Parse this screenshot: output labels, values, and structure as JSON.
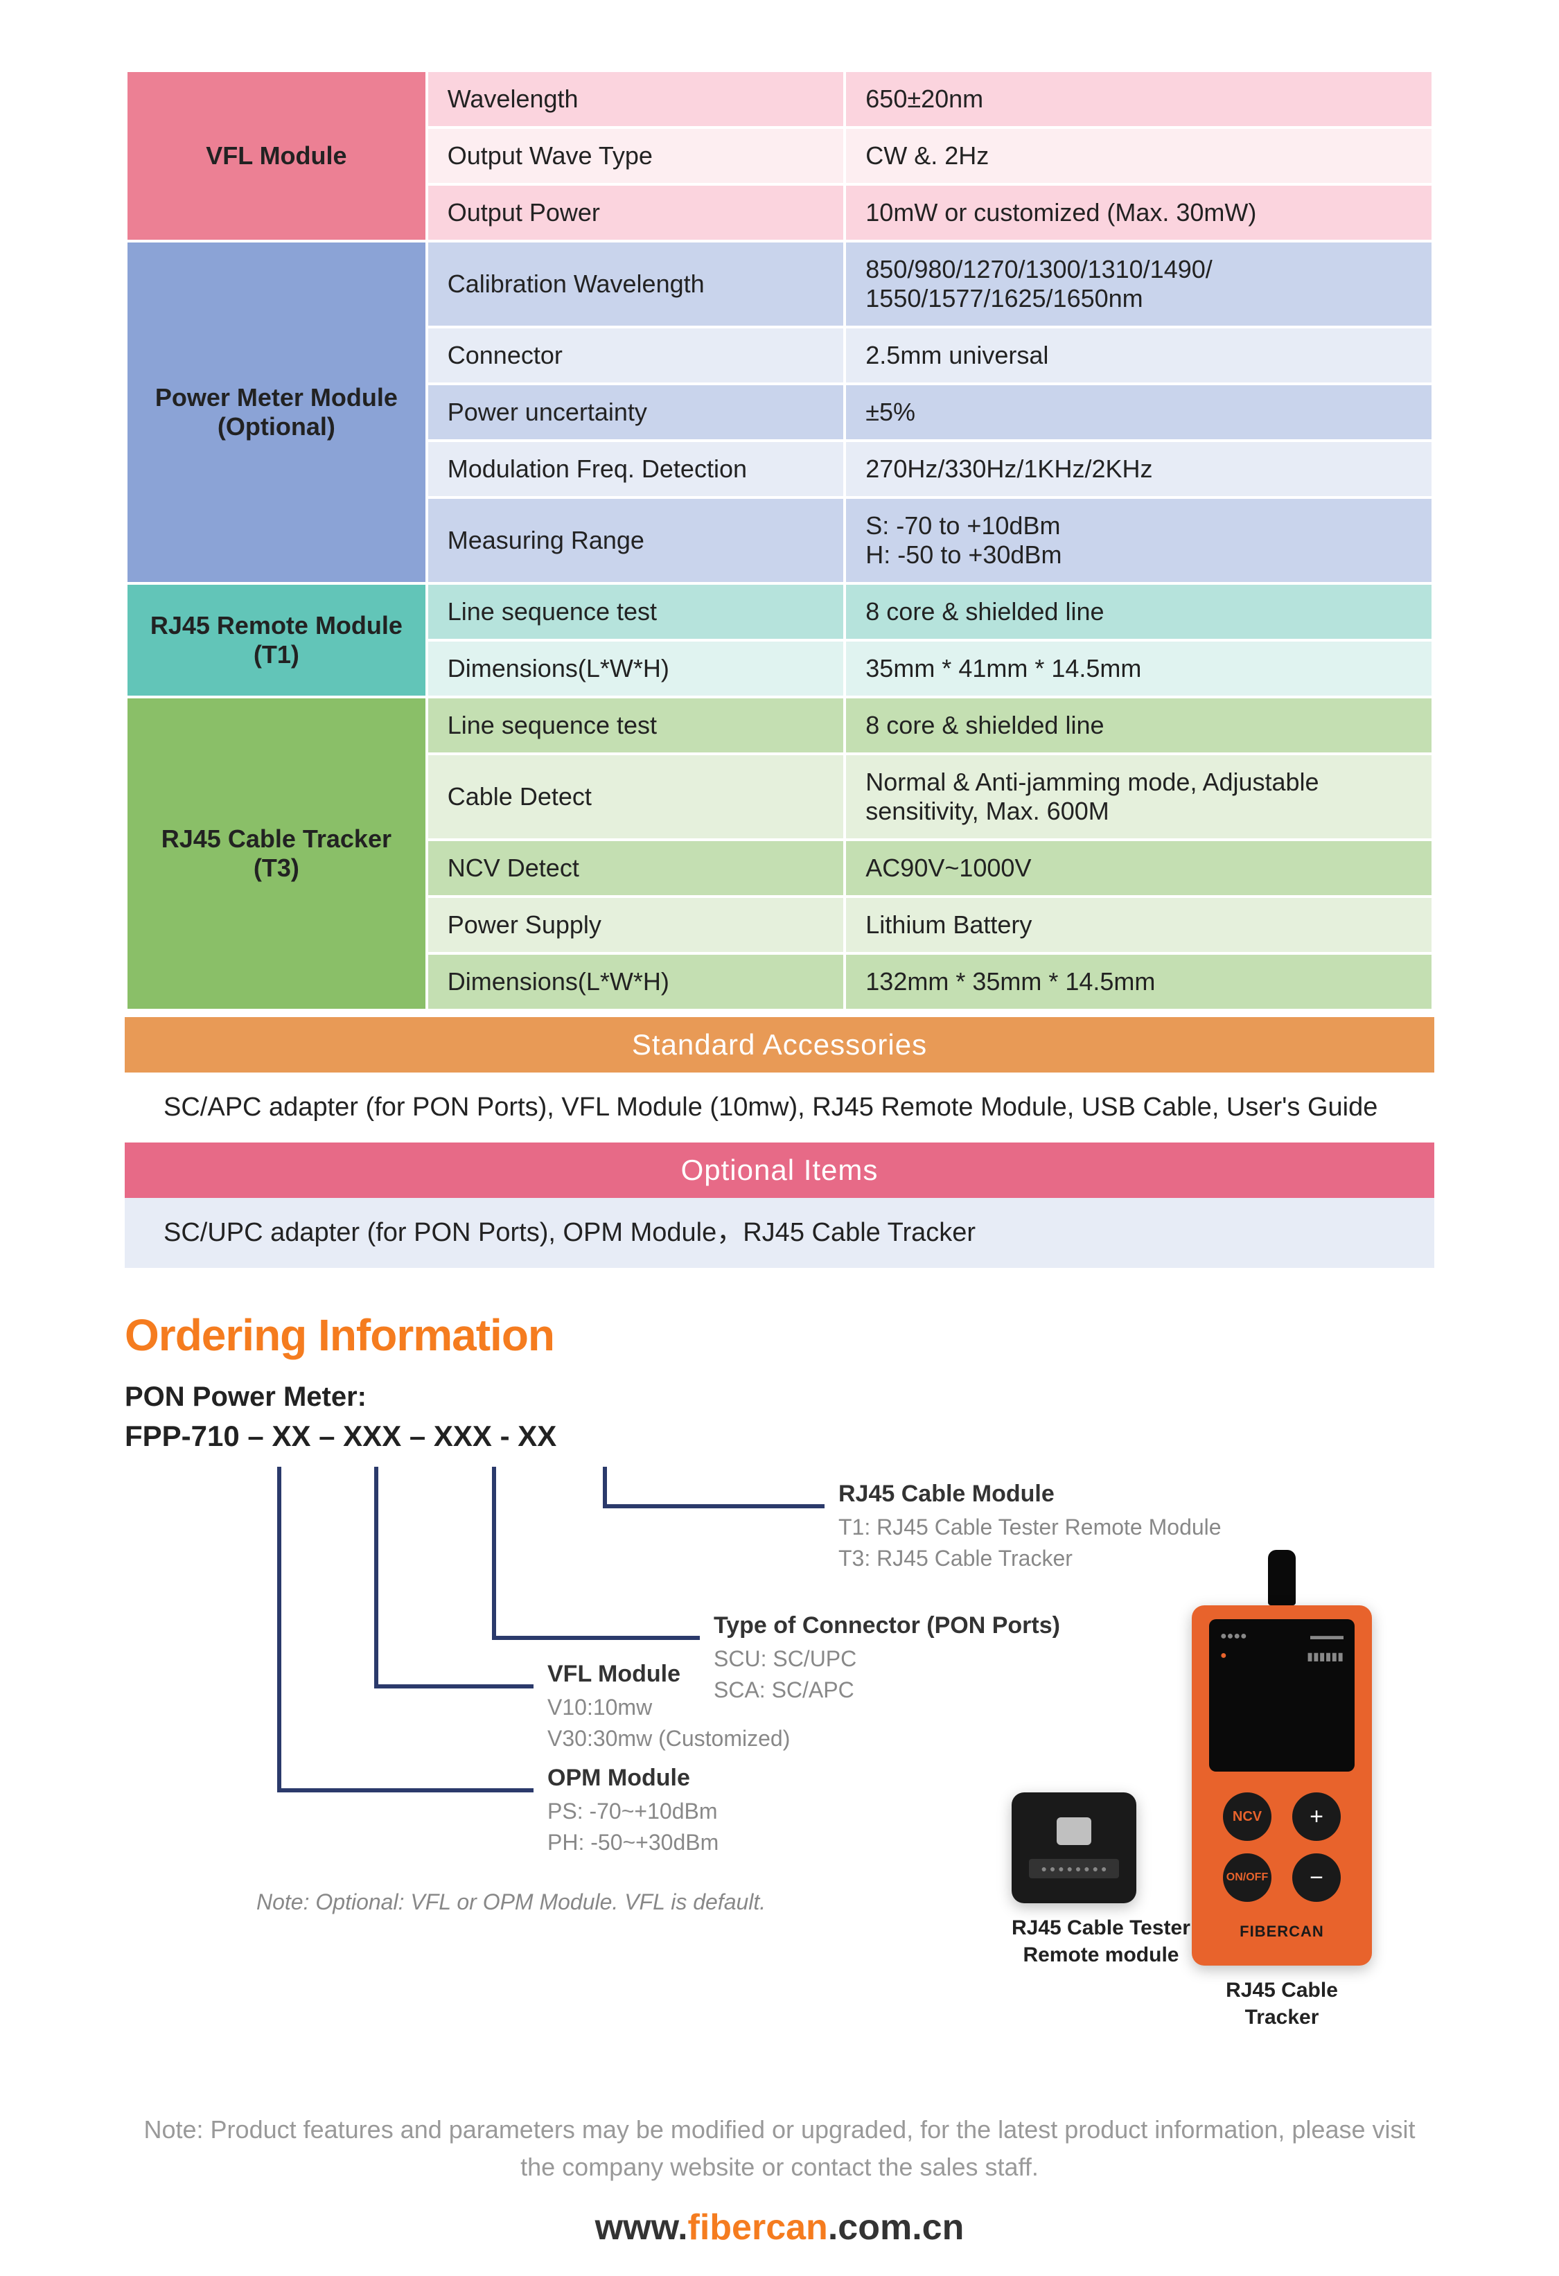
{
  "spec_sections": [
    {
      "name": "VFL Module",
      "header_bg": "#ec8094",
      "row_bgs": [
        "#fbd4de",
        "#fdeef1",
        "#fbd4de"
      ],
      "rows": [
        {
          "label": "Wavelength",
          "value": "650±20nm"
        },
        {
          "label": "Output Wave Type",
          "value": "CW &. 2Hz"
        },
        {
          "label": "Output Power",
          "value": "10mW or customized (Max. 30mW)"
        }
      ]
    },
    {
      "name": "Power Meter Module (Optional)",
      "header_bg": "#8ba3d6",
      "row_bgs": [
        "#c9d4ec",
        "#e7ecf6",
        "#c9d4ec",
        "#e7ecf6",
        "#c9d4ec"
      ],
      "rows": [
        {
          "label": "Calibration Wavelength",
          "value": "850/980/1270/1300/1310/1490/\n1550/1577/1625/1650nm"
        },
        {
          "label": "Connector",
          "value": "2.5mm universal"
        },
        {
          "label": "Power uncertainty",
          "value": "±5%"
        },
        {
          "label": "Modulation Freq. Detection",
          "value": "270Hz/330Hz/1KHz/2KHz"
        },
        {
          "label": "Measuring Range",
          "value": "S: -70 to +10dBm\nH: -50 to +30dBm"
        }
      ]
    },
    {
      "name": "RJ45 Remote Module (T1)",
      "header_bg": "#62c5b8",
      "row_bgs": [
        "#b6e3dc",
        "#e0f3f0"
      ],
      "rows": [
        {
          "label": "Line sequence test",
          "value": "8 core & shielded line"
        },
        {
          "label": "Dimensions(L*W*H)",
          "value": "35mm * 41mm * 14.5mm"
        }
      ]
    },
    {
      "name": "RJ45 Cable Tracker (T3)",
      "header_bg": "#8abf68",
      "row_bgs": [
        "#c4dfb2",
        "#e5f0dc",
        "#c4dfb2",
        "#e5f0dc",
        "#c4dfb2"
      ],
      "rows": [
        {
          "label": "Line sequence test",
          "value": "8 core & shielded line"
        },
        {
          "label": "Cable Detect",
          "value": "Normal & Anti-jamming mode, Adjustable sensitivity,  Max. 600M"
        },
        {
          "label": "NCV Detect",
          "value": "AC90V~1000V"
        },
        {
          "label": "Power Supply",
          "value": "Lithium Battery"
        },
        {
          "label": "Dimensions(L*W*H)",
          "value": "132mm * 35mm * 14.5mm"
        }
      ]
    }
  ],
  "std_accessories": {
    "banner": "Standard Accessories",
    "banner_bg": "#e89a56",
    "text": "SC/APC adapter (for PON Ports),  VFL Module (10mw),  RJ45 Remote Module, USB Cable, User's Guide",
    "text_bg": "#ffffff"
  },
  "opt_items": {
    "banner": "Optional Items",
    "banner_bg": "#e76a87",
    "text": "SC/UPC adapter (for PON Ports), OPM Module，RJ45 Cable Tracker",
    "text_bg": "#e7ecf6"
  },
  "ordering": {
    "title": "Ordering Information",
    "subtitle": "PON Power Meter:",
    "part_number": "FPP-710 – XX – XXX – XXX - XX",
    "callouts": [
      {
        "title": "RJ45 Cable Module",
        "subs": [
          "T1: RJ45 Cable Tester Remote Module",
          "T3: RJ45 Cable Tracker"
        ]
      },
      {
        "title": "Type of Connector (PON Ports)",
        "subs": [
          "SCU: SC/UPC",
          "SCA: SC/APC"
        ]
      },
      {
        "title": "VFL Module",
        "subs": [
          "V10:10mw",
          "V30:30mw (Customized)"
        ]
      },
      {
        "title": "OPM Module",
        "subs": [
          "PS: -70~+10dBm",
          "PH: -50~+30dBm"
        ]
      }
    ],
    "note": "Note: Optional: VFL or OPM Module. VFL is  default.",
    "devices": [
      {
        "caption": "RJ45 Cable Tester\nRemote module"
      },
      {
        "caption": "RJ45 Cable\nTracker"
      }
    ],
    "brand_label": "FIBERCAN"
  },
  "footer": {
    "note": "Note: Product features and parameters may be modified or upgraded, for the latest product information, please visit the company website or contact the sales staff.",
    "url_www": "www.",
    "url_brand": "fibercan",
    "url_domain": ".com.cn"
  },
  "colors": {
    "bracket": "#2b3a6b",
    "orange_device": "#e8632c",
    "black_device": "#1a1a1a"
  }
}
